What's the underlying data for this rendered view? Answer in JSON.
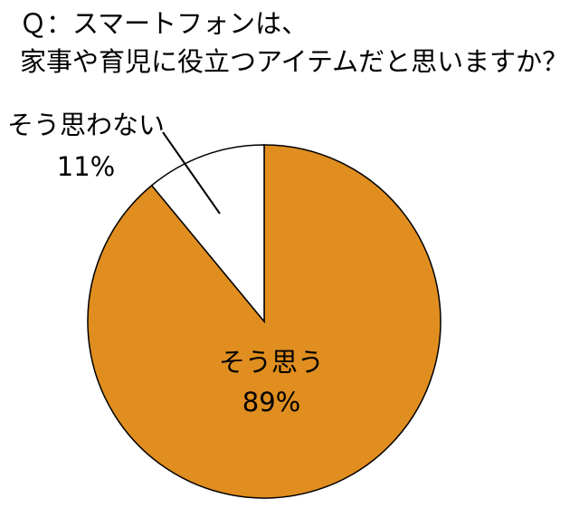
{
  "chart_data": {
    "type": "pie",
    "title": [
      "Ｑ：スマートフォンは、",
      "家事や育児に役立つアイテムだと思いますか？"
    ],
    "categories": [
      "そう思う",
      "そう思わない"
    ],
    "values": [
      89,
      11
    ],
    "value_labels": [
      "89%",
      "11%"
    ],
    "colors": [
      "#e08e1f",
      "#ffffff"
    ]
  }
}
